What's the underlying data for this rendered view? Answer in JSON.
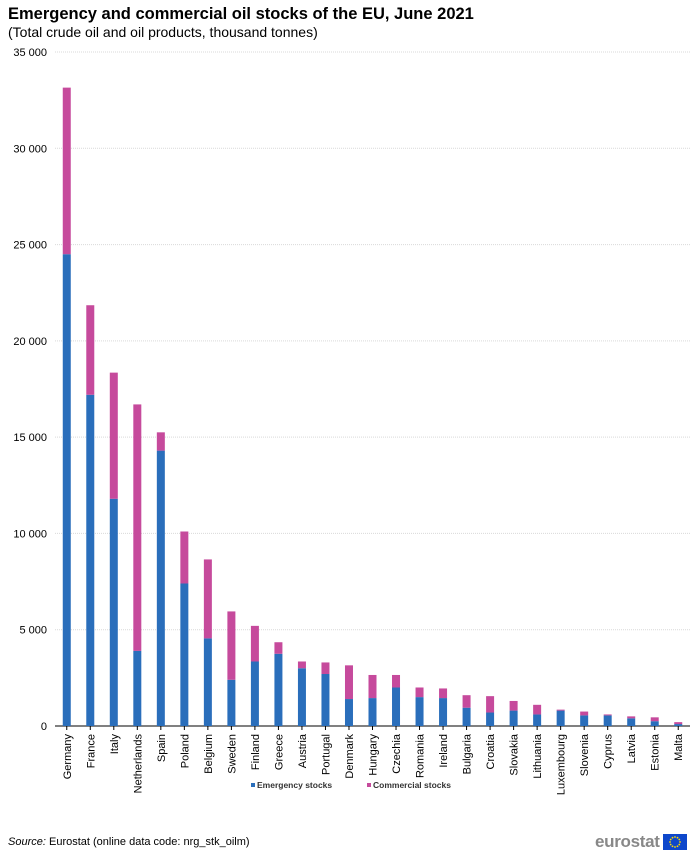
{
  "header": {
    "title": "Emergency and commercial oil stocks of the EU, June 2021",
    "subtitle": "(Total crude oil and oil products, thousand tonnes)"
  },
  "footer": {
    "source_label": "Source:",
    "source_text": "Eurostat (online data code: nrg_stk_oilm)",
    "logo_text": "eurostat",
    "logo_icon": "eu-flag-icon"
  },
  "chart_data": {
    "type": "bar",
    "stacked": true,
    "categories": [
      "Germany",
      "France",
      "Italy",
      "Netherlands",
      "Spain",
      "Poland",
      "Belgium",
      "Sweden",
      "Finland",
      "Greece",
      "Austria",
      "Portugal",
      "Denmark",
      "Hungary",
      "Czechia",
      "Romania",
      "Ireland",
      "Bulgaria",
      "Croatia",
      "Slovakia",
      "Lithuania",
      "Luxembourg",
      "Slovenia",
      "Cyprus",
      "Latvia",
      "Estonia",
      "Malta"
    ],
    "series": [
      {
        "name": "Emergency stocks",
        "color": "#2a6ebb",
        "values": [
          24500,
          17200,
          11800,
          3900,
          14300,
          7400,
          4550,
          2400,
          3350,
          3750,
          3000,
          2700,
          1400,
          1450,
          2000,
          1500,
          1450,
          950,
          700,
          800,
          600,
          800,
          550,
          550,
          400,
          250,
          100
        ]
      },
      {
        "name": "Commercial stocks",
        "color": "#c64a9c",
        "values": [
          8650,
          4650,
          6550,
          12800,
          950,
          2700,
          4100,
          3550,
          1850,
          600,
          350,
          600,
          1750,
          1200,
          650,
          500,
          500,
          650,
          850,
          500,
          500,
          50,
          200,
          50,
          100,
          200,
          100
        ]
      }
    ],
    "yaxis": {
      "min": 0,
      "max": 35000,
      "ticks": [
        0,
        5000,
        10000,
        15000,
        20000,
        25000,
        30000,
        35000
      ],
      "tick_labels": [
        "0",
        "5 000",
        "10 000",
        "15 000",
        "20 000",
        "25 000",
        "30 000",
        "35 000"
      ]
    },
    "title": "Emergency and commercial oil stocks of the EU, June 2021",
    "xlabel": "",
    "ylabel": "",
    "grid": true,
    "legend_position": "bottom-center"
  }
}
